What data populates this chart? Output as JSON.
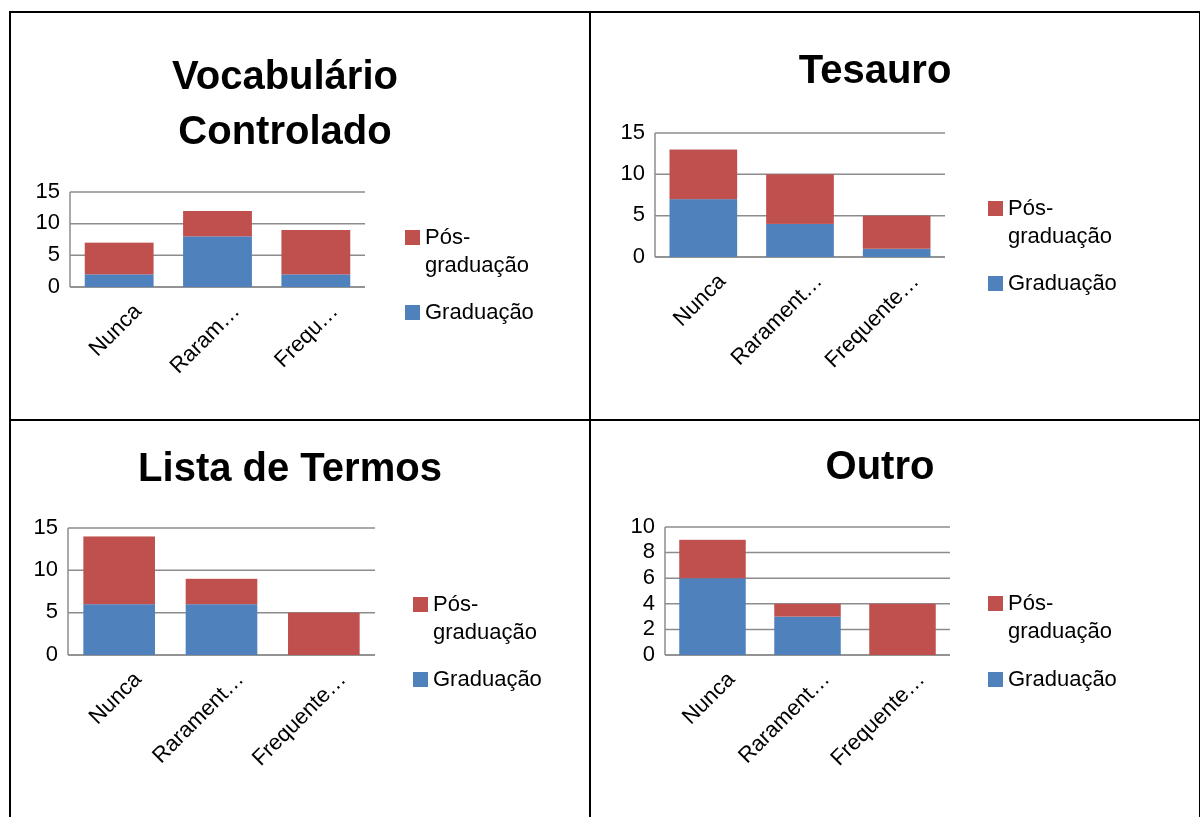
{
  "chart_data": [
    {
      "type": "bar",
      "title": "Vocabulário Controlado",
      "categories": [
        "Nunca",
        "Raram…",
        "Frequ…"
      ],
      "stacked": true,
      "series": [
        {
          "name": "Graduação",
          "color": "#4f81bd",
          "values": [
            2,
            8,
            2
          ]
        },
        {
          "name": "Pós-graduação",
          "color": "#c0504d",
          "values": [
            5,
            4,
            7
          ]
        }
      ],
      "ylim": [
        0,
        15
      ],
      "yticks": [
        0,
        5,
        10,
        15
      ],
      "grid": "y",
      "legend": "right"
    },
    {
      "type": "bar",
      "title": "Tesauro",
      "categories": [
        "Nunca",
        "Rarament…",
        "Frequente…"
      ],
      "stacked": true,
      "series": [
        {
          "name": "Graduação",
          "color": "#4f81bd",
          "values": [
            7,
            4,
            1
          ]
        },
        {
          "name": "Pós-graduação",
          "color": "#c0504d",
          "values": [
            6,
            6,
            4
          ]
        }
      ],
      "ylim": [
        0,
        15
      ],
      "yticks": [
        0,
        5,
        10,
        15
      ],
      "grid": "y",
      "legend": "right"
    },
    {
      "type": "bar",
      "title": "Lista de Termos",
      "categories": [
        "Nunca",
        "Rarament…",
        "Frequente…"
      ],
      "stacked": true,
      "series": [
        {
          "name": "Graduação",
          "color": "#4f81bd",
          "values": [
            6,
            6,
            0
          ]
        },
        {
          "name": "Pós-graduação",
          "color": "#c0504d",
          "values": [
            8,
            3,
            5
          ]
        }
      ],
      "ylim": [
        0,
        15
      ],
      "yticks": [
        0,
        5,
        10,
        15
      ],
      "grid": "y",
      "legend": "right"
    },
    {
      "type": "bar",
      "title": "Outro",
      "categories": [
        "Nunca",
        "Rarament…",
        "Frequente…"
      ],
      "stacked": true,
      "series": [
        {
          "name": "Graduação",
          "color": "#4f81bd",
          "values": [
            6,
            3,
            0
          ]
        },
        {
          "name": "Pós-graduação",
          "color": "#c0504d",
          "values": [
            3,
            1,
            4
          ]
        }
      ],
      "ylim": [
        0,
        10
      ],
      "yticks": [
        0,
        2,
        4,
        6,
        8,
        10
      ],
      "grid": "y",
      "legend": "right"
    }
  ]
}
